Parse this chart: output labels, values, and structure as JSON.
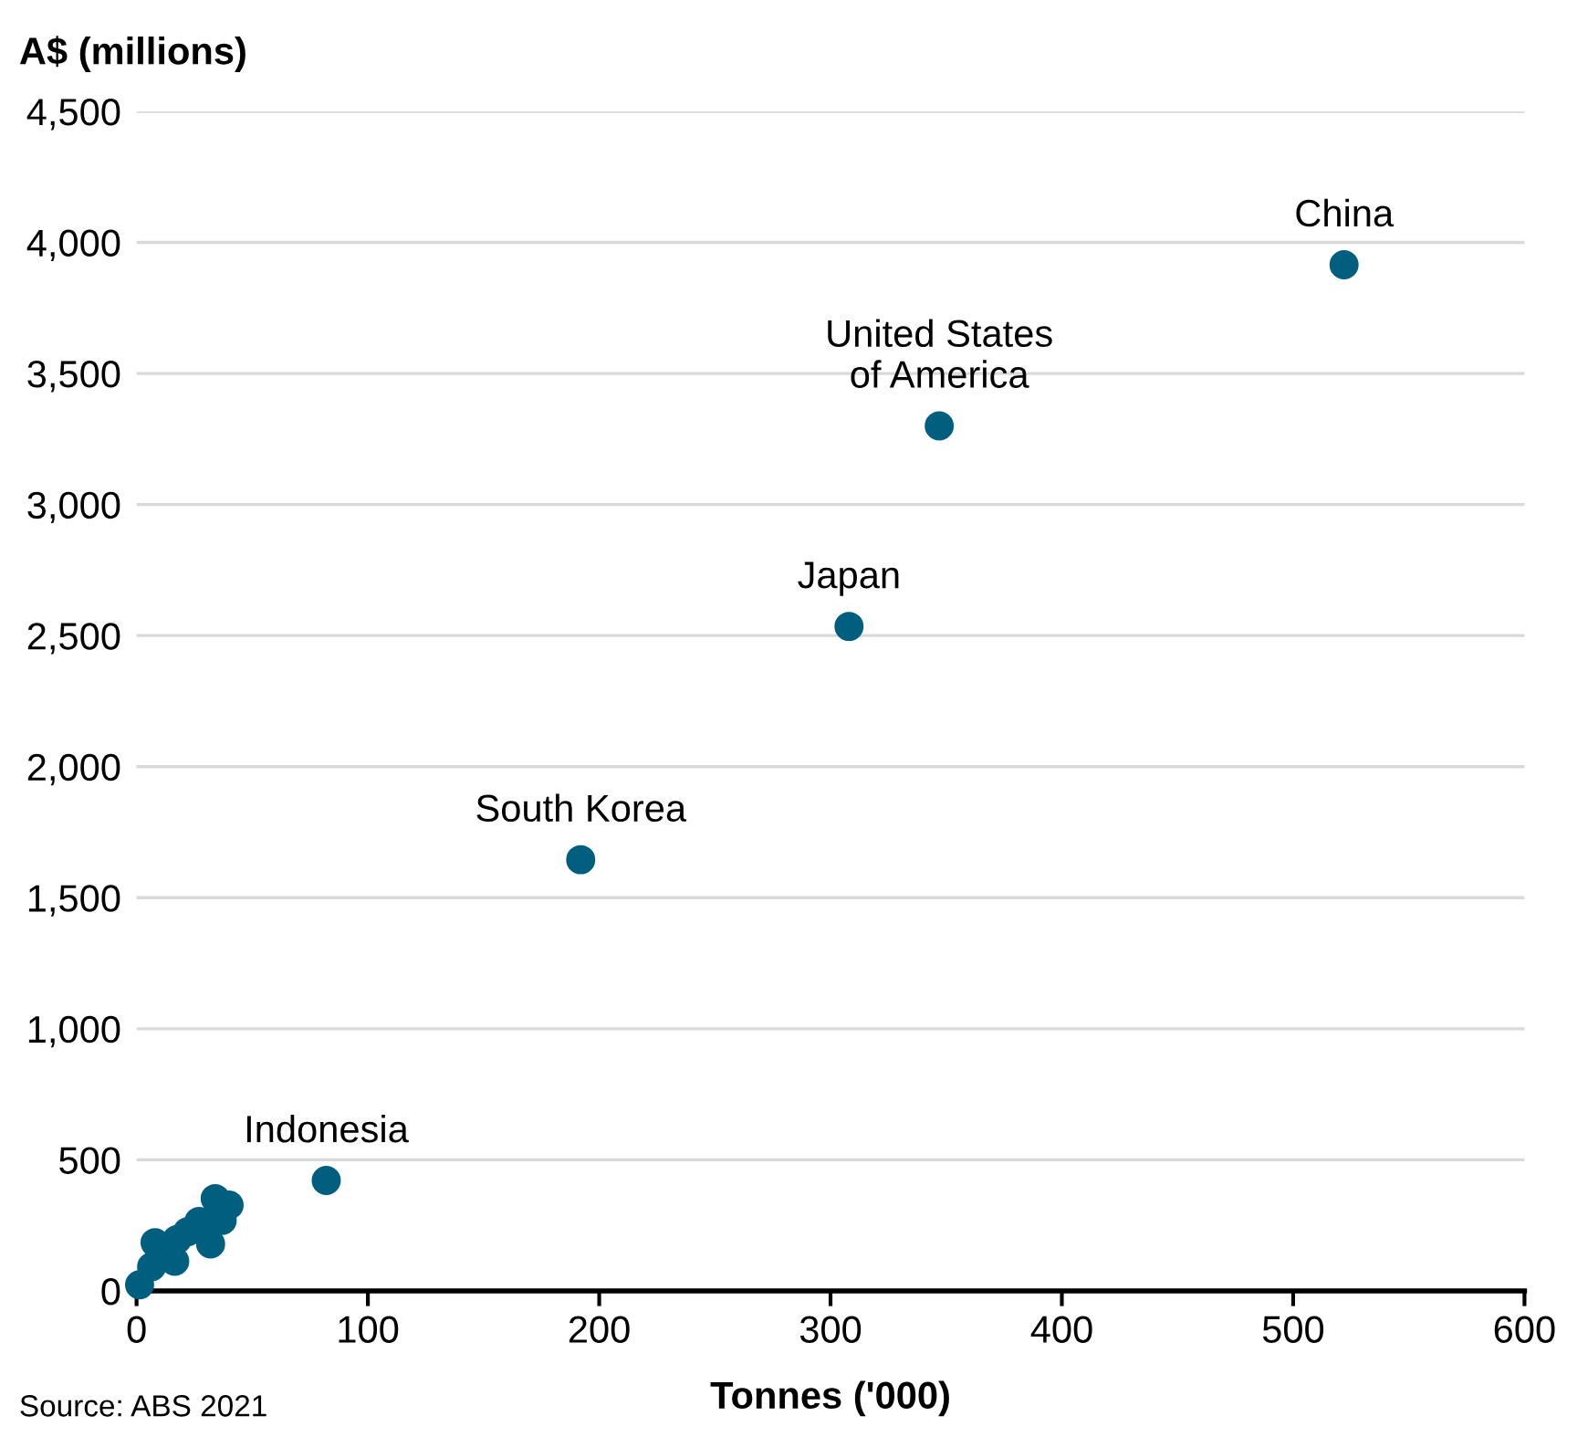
{
  "chart_data": {
    "type": "scatter",
    "ylabel": "A$ (millions)",
    "xlabel": "Tonnes ('000)",
    "xlim": [
      0,
      600
    ],
    "xticks": [
      0,
      100,
      200,
      300,
      400,
      500,
      600
    ],
    "ylim": [
      0,
      4500
    ],
    "yticks": [
      {
        "value": 0,
        "label": "0"
      },
      {
        "value": 500,
        "label": "500"
      },
      {
        "value": 1000,
        "label": "1,000"
      },
      {
        "value": 1500,
        "label": "1,500"
      },
      {
        "value": 2000,
        "label": "2,000"
      },
      {
        "value": 2500,
        "label": "2,500"
      },
      {
        "value": 3000,
        "label": "3,000"
      },
      {
        "value": 3500,
        "label": "3,500"
      },
      {
        "value": 4000,
        "label": "4,000"
      },
      {
        "value": 4500,
        "label": "4,500"
      }
    ],
    "grid": "y",
    "marker": "circle",
    "legend": false,
    "series": [
      {
        "color": "#005f7f",
        "x": [
          522,
          347,
          308,
          192,
          82,
          34,
          40,
          37,
          32,
          27,
          22,
          17.5,
          16.5,
          8,
          6.5,
          1.3
        ],
        "values": [
          3915,
          3300,
          2535,
          1645,
          421,
          352,
          327,
          269,
          179,
          265,
          225,
          196,
          113,
          184,
          92,
          23
        ]
      }
    ],
    "annotations": [
      {
        "text": "China",
        "x": 522,
        "y": 3915
      },
      {
        "text": "United States\nof America",
        "x": 347,
        "y": 3300
      },
      {
        "text": "Japan",
        "x": 308,
        "y": 2535
      },
      {
        "text": "South Korea",
        "x": 192,
        "y": 1645
      },
      {
        "text": "Indonesia",
        "x": 82,
        "y": 421
      },
      "Source: ABS 2021"
    ]
  }
}
